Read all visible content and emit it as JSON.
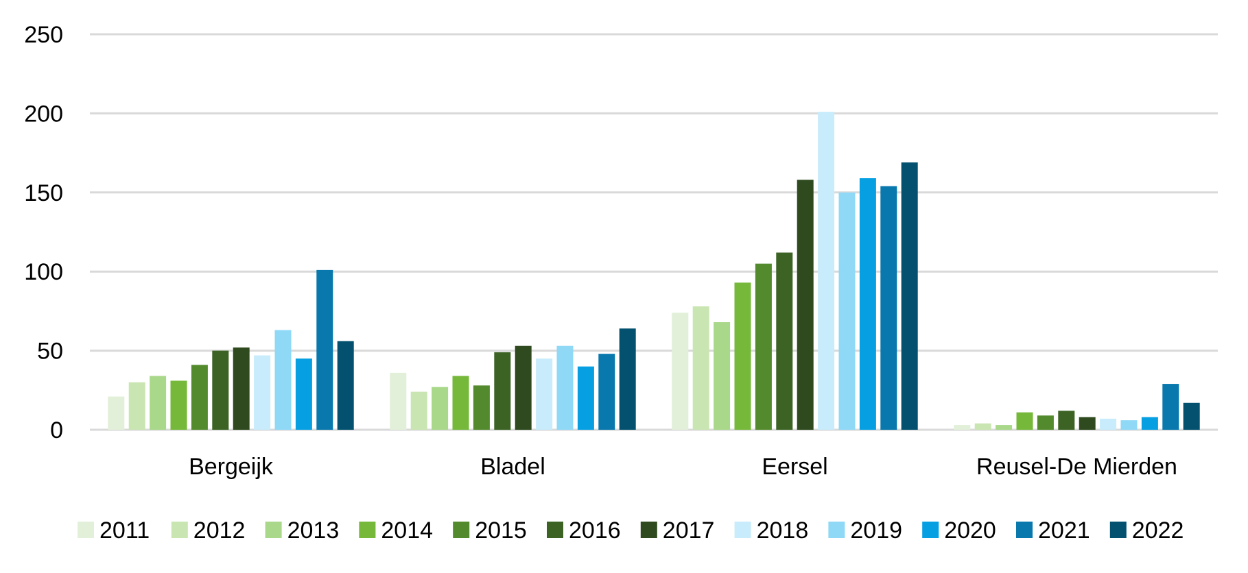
{
  "chart_data": {
    "type": "bar",
    "categories": [
      "Bergeijk",
      "Bladel",
      "Eersel",
      "Reusel-De Mierden"
    ],
    "ylim": [
      0,
      250
    ],
    "yticks": [
      0,
      50,
      100,
      150,
      200,
      250
    ],
    "grid": true,
    "legend_position": "bottom",
    "series": [
      {
        "name": "2011",
        "color": "#E2F0D9",
        "values": [
          21,
          36,
          74,
          3
        ]
      },
      {
        "name": "2012",
        "color": "#C9E5B1",
        "values": [
          30,
          24,
          78,
          4
        ]
      },
      {
        "name": "2013",
        "color": "#A9D88A",
        "values": [
          34,
          27,
          68,
          3
        ]
      },
      {
        "name": "2014",
        "color": "#76B83A",
        "values": [
          31,
          34,
          93,
          11
        ]
      },
      {
        "name": "2015",
        "color": "#548A2E",
        "values": [
          41,
          28,
          105,
          9
        ]
      },
      {
        "name": "2016",
        "color": "#3C6324",
        "values": [
          50,
          49,
          112,
          12
        ]
      },
      {
        "name": "2017",
        "color": "#2E4A1E",
        "values": [
          52,
          53,
          158,
          8
        ]
      },
      {
        "name": "2018",
        "color": "#C8ECFB",
        "values": [
          47,
          45,
          201,
          7
        ]
      },
      {
        "name": "2019",
        "color": "#8FD9F7",
        "values": [
          63,
          53,
          150,
          6
        ]
      },
      {
        "name": "2020",
        "color": "#06A0E2",
        "values": [
          45,
          40,
          159,
          8
        ]
      },
      {
        "name": "2021",
        "color": "#0878AD",
        "values": [
          101,
          48,
          154,
          29
        ]
      },
      {
        "name": "2022",
        "color": "#03506F",
        "values": [
          56,
          64,
          169,
          17
        ]
      }
    ]
  }
}
